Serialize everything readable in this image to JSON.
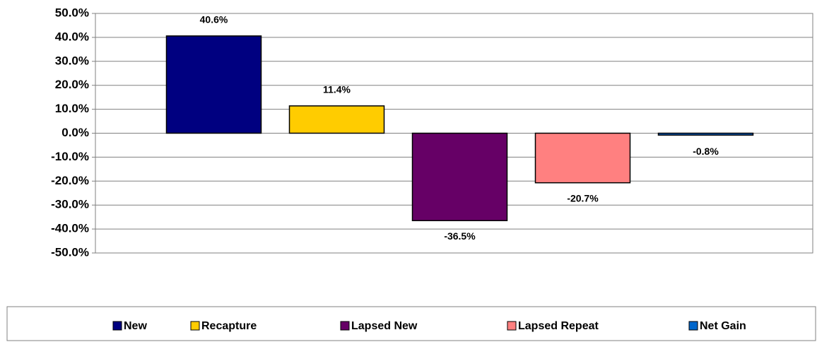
{
  "chart_data": {
    "type": "bar",
    "categories": [
      null
    ],
    "series": [
      {
        "name": "New",
        "color": "#000080",
        "values": [
          40.6
        ],
        "value_labels": [
          "40.6%"
        ]
      },
      {
        "name": "Recapture",
        "color": "#ffcc00",
        "values": [
          11.4
        ],
        "value_labels": [
          "11.4%"
        ]
      },
      {
        "name": "Lapsed New",
        "color": "#660066",
        "values": [
          -36.5
        ],
        "value_labels": [
          "-36.5%"
        ]
      },
      {
        "name": "Lapsed Repeat",
        "color": "#ff8080",
        "values": [
          -20.7
        ],
        "value_labels": [
          "-20.7%"
        ]
      },
      {
        "name": "Net Gain",
        "color": "#0066cc",
        "values": [
          -0.8
        ],
        "value_labels": [
          "-0.8%"
        ]
      }
    ],
    "ylim": [
      -50,
      50
    ],
    "yticks": [
      {
        "value": 50,
        "label": "50.0%"
      },
      {
        "value": 40,
        "label": "40.0%"
      },
      {
        "value": 30,
        "label": "30.0%"
      },
      {
        "value": 20,
        "label": "20.0%"
      },
      {
        "value": 10,
        "label": "10.0%"
      },
      {
        "value": 0,
        "label": "0.0%"
      },
      {
        "value": -10,
        "label": "-10.0%"
      },
      {
        "value": -20,
        "label": "-20.0%"
      },
      {
        "value": -30,
        "label": "-30.0%"
      },
      {
        "value": -40,
        "label": "-40.0%"
      },
      {
        "value": -50,
        "label": "-50.0%"
      }
    ],
    "grid": true,
    "legend": "bottom"
  }
}
